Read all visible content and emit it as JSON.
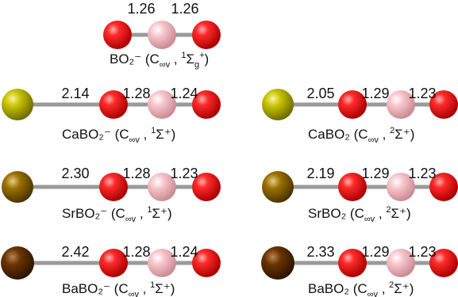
{
  "colors": {
    "oxygen": "#e00000",
    "boron": "#f4b8be",
    "calcium": "#b8b400",
    "strontium": "#8f6800",
    "barium": "#5c2e00",
    "bond": "#9a9a9a"
  },
  "panels": [
    {
      "id": "bo2-anion",
      "atoms": [
        "oxygen",
        "boron",
        "oxygen"
      ],
      "bond_lengths": [
        "1.26",
        "1.26"
      ],
      "caption": {
        "formula": "BO₂⁻",
        "group": "C",
        "group_sub": "∞v",
        "state_sup": "1",
        "state_main": "Σ",
        "state_sub": "g",
        "state_sup2": "+"
      }
    },
    {
      "id": "cabo2-anion",
      "atoms": [
        "calcium",
        "oxygen",
        "boron",
        "oxygen"
      ],
      "bond_lengths": [
        "2.14",
        "1.28",
        "1.24"
      ],
      "caption": {
        "formula": "CaBO₂⁻",
        "group": "C",
        "group_sub": "∞v",
        "state_sup": "1",
        "state_main": "Σ⁺",
        "state_sub": "",
        "state_sup2": ""
      }
    },
    {
      "id": "cabo2-neutral",
      "atoms": [
        "calcium",
        "oxygen",
        "boron",
        "oxygen"
      ],
      "bond_lengths": [
        "2.05",
        "1.29",
        "1.23"
      ],
      "caption": {
        "formula": "CaBO₂",
        "group": "C",
        "group_sub": "∞v",
        "state_sup": "2",
        "state_main": "Σ⁺",
        "state_sub": "",
        "state_sup2": ""
      }
    },
    {
      "id": "srbo2-anion",
      "atoms": [
        "strontium",
        "oxygen",
        "boron",
        "oxygen"
      ],
      "bond_lengths": [
        "2.30",
        "1.28",
        "1.23"
      ],
      "caption": {
        "formula": "SrBO₂⁻",
        "group": "C",
        "group_sub": "∞v",
        "state_sup": "1",
        "state_main": "Σ⁺",
        "state_sub": "",
        "state_sup2": ""
      }
    },
    {
      "id": "srbo2-neutral",
      "atoms": [
        "strontium",
        "oxygen",
        "boron",
        "oxygen"
      ],
      "bond_lengths": [
        "2.19",
        "1.29",
        "1.23"
      ],
      "caption": {
        "formula": "SrBO₂",
        "group": "C",
        "group_sub": "∞v",
        "state_sup": "2",
        "state_main": "Σ⁺",
        "state_sub": "",
        "state_sup2": ""
      }
    },
    {
      "id": "babo2-anion",
      "atoms": [
        "barium",
        "oxygen",
        "boron",
        "oxygen"
      ],
      "bond_lengths": [
        "2.42",
        "1.28",
        "1.24"
      ],
      "caption": {
        "formula": "BaBO₂⁻",
        "group": "C",
        "group_sub": "∞v",
        "state_sup": "1",
        "state_main": "Σ⁺",
        "state_sub": "",
        "state_sup2": ""
      }
    },
    {
      "id": "babo2-neutral",
      "atoms": [
        "barium",
        "oxygen",
        "boron",
        "oxygen"
      ],
      "bond_lengths": [
        "2.33",
        "1.29",
        "1.23"
      ],
      "caption": {
        "formula": "BaBO₂",
        "group": "C",
        "group_sub": "∞v",
        "state_sup": "2",
        "state_main": "Σ⁺",
        "state_sub": "",
        "state_sup2": ""
      }
    }
  ]
}
